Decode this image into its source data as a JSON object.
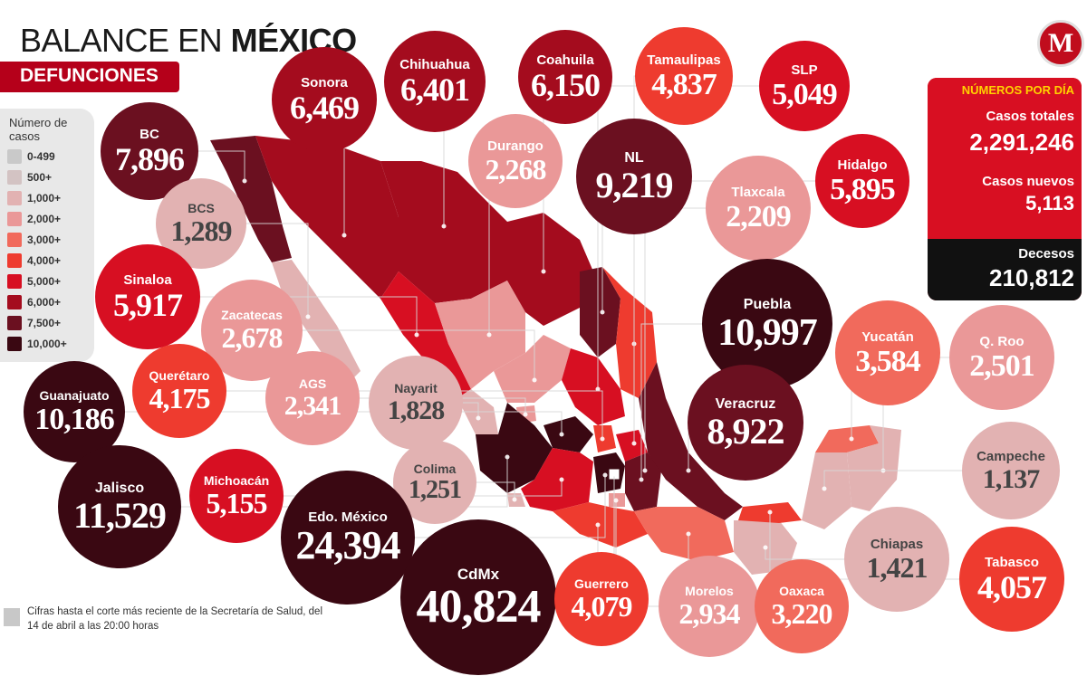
{
  "title_plain": "BALANCE EN",
  "title_bold": "MÉXICO",
  "subtitle": "DEFUNCIONES",
  "logo_letter": "M",
  "legend": {
    "title": "Número de casos",
    "items": [
      {
        "label": "0-499",
        "color": "#c9c9c9"
      },
      {
        "label": "500+",
        "color": "#d3c3c3"
      },
      {
        "label": "1,000+",
        "color": "#e2b2b2"
      },
      {
        "label": "2,000+",
        "color": "#ea9898"
      },
      {
        "label": "3,000+",
        "color": "#f16a5c"
      },
      {
        "label": "4,000+",
        "color": "#ee3b2f"
      },
      {
        "label": "5,000+",
        "color": "#d70f22"
      },
      {
        "label": "6,000+",
        "color": "#a40c1e"
      },
      {
        "label": "7,500+",
        "color": "#6b1020"
      },
      {
        "label": "10,000+",
        "color": "#3a0812"
      }
    ]
  },
  "panel": {
    "heading": "NÚMEROS POR DÍA",
    "total_label": "Casos totales",
    "total_value": "2,291,246",
    "new_label": "Casos nuevos",
    "new_value": "5,113",
    "deaths_label": "Decesos",
    "deaths_value": "210,812"
  },
  "footnote": "Cifras hasta el corte más reciente de la Secretaría de Salud, del 14 de abril a las 20:00 horas",
  "states": [
    {
      "name": "BC",
      "value": "7,896",
      "color": "#6b1020"
    },
    {
      "name": "BCS",
      "value": "1,289",
      "color": "#e2b2b2",
      "dark": true
    },
    {
      "name": "Sonora",
      "value": "6,469",
      "color": "#a40c1e"
    },
    {
      "name": "Chihuahua",
      "value": "6,401",
      "color": "#a40c1e"
    },
    {
      "name": "Coahuila",
      "value": "6,150",
      "color": "#a40c1e"
    },
    {
      "name": "Tamaulipas",
      "value": "4,837",
      "color": "#ee3b2f"
    },
    {
      "name": "SLP",
      "value": "5,049",
      "color": "#d70f22"
    },
    {
      "name": "Durango",
      "value": "2,268",
      "color": "#ea9898"
    },
    {
      "name": "NL",
      "value": "9,219",
      "color": "#6b1020"
    },
    {
      "name": "Tlaxcala",
      "value": "2,209",
      "color": "#ea9898"
    },
    {
      "name": "Hidalgo",
      "value": "5,895",
      "color": "#d70f22"
    },
    {
      "name": "Sinaloa",
      "value": "5,917",
      "color": "#d70f22"
    },
    {
      "name": "Zacatecas",
      "value": "2,678",
      "color": "#ea9898"
    },
    {
      "name": "Puebla",
      "value": "10,997",
      "color": "#3a0812"
    },
    {
      "name": "Yucatán",
      "value": "3,584",
      "color": "#f16a5c"
    },
    {
      "name": "Q. Roo",
      "value": "2,501",
      "color": "#ea9898"
    },
    {
      "name": "Guanajuato",
      "value": "10,186",
      "color": "#3a0812"
    },
    {
      "name": "Querétaro",
      "value": "4,175",
      "color": "#ee3b2f"
    },
    {
      "name": "AGS",
      "value": "2,341",
      "color": "#ea9898"
    },
    {
      "name": "Nayarit",
      "value": "1,828",
      "color": "#e2b2b2",
      "dark": true
    },
    {
      "name": "Veracruz",
      "value": "8,922",
      "color": "#6b1020"
    },
    {
      "name": "Campeche",
      "value": "1,137",
      "color": "#e2b2b2",
      "dark": true
    },
    {
      "name": "Colima",
      "value": "1,251",
      "color": "#e2b2b2",
      "dark": true
    },
    {
      "name": "Jalisco",
      "value": "11,529",
      "color": "#3a0812"
    },
    {
      "name": "Michoacán",
      "value": "5,155",
      "color": "#d70f22"
    },
    {
      "name": "Edo. México",
      "value": "24,394",
      "color": "#3a0812"
    },
    {
      "name": "CdMx",
      "value": "40,824",
      "color": "#3a0812"
    },
    {
      "name": "Chiapas",
      "value": "1,421",
      "color": "#e2b2b2",
      "dark": true
    },
    {
      "name": "Tabasco",
      "value": "4,057",
      "color": "#ee3b2f"
    },
    {
      "name": "Guerrero",
      "value": "4,079",
      "color": "#ee3b2f"
    },
    {
      "name": "Morelos",
      "value": "2,934",
      "color": "#ea9898"
    },
    {
      "name": "Oaxaca",
      "value": "3,220",
      "color": "#f16a5c"
    }
  ]
}
